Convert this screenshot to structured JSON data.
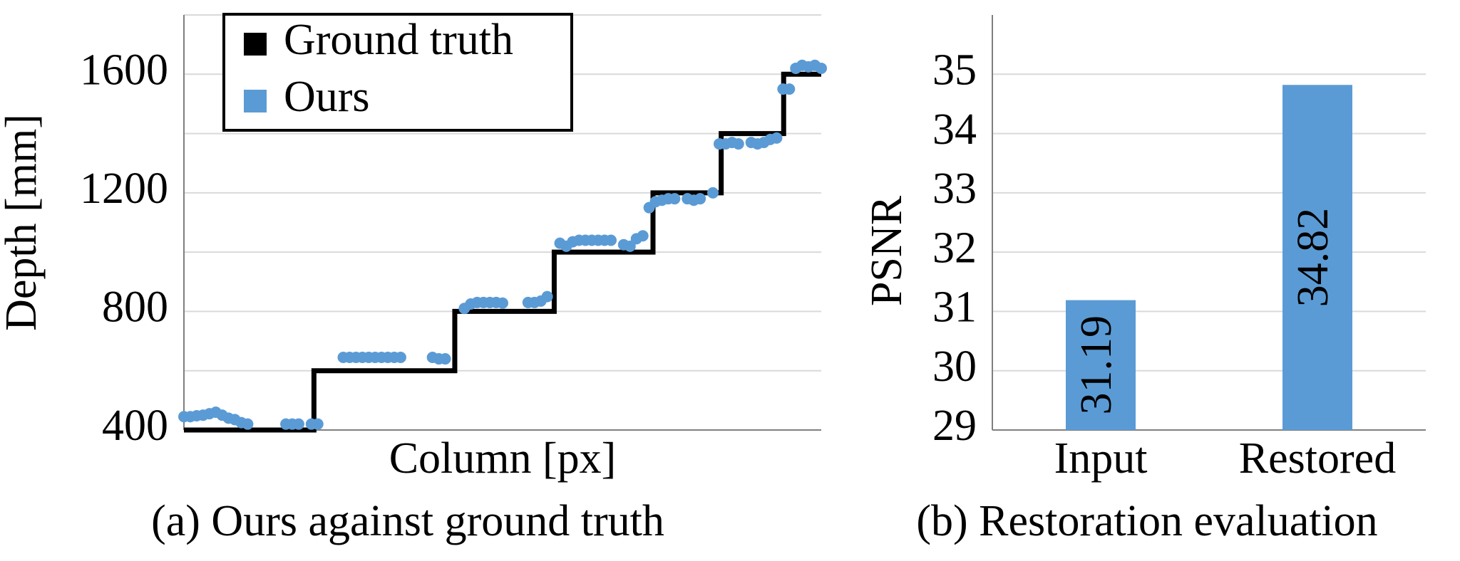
{
  "chart_data": [
    {
      "type": "line",
      "xlabel": "Column [px]",
      "ylabel": "Depth [mm]",
      "caption": "(a) Ours against ground truth",
      "xlim": [
        0,
        100
      ],
      "ylim": [
        400,
        1800
      ],
      "yticks": [
        400,
        800,
        1200,
        1600
      ],
      "minor_grid": [
        600,
        1000,
        1400,
        1800
      ],
      "grid": true,
      "legend": "upper left",
      "series": [
        {
          "name": "Ground truth",
          "color": "#000000",
          "mode": "line",
          "x": [
            0,
            20.4,
            20.4,
            42.5,
            42.5,
            58.1,
            58.1,
            73.6,
            73.6,
            84.3,
            84.3,
            94.1,
            94.1,
            100
          ],
          "values": [
            400,
            400,
            600,
            600,
            800,
            800,
            1000,
            1000,
            1200,
            1200,
            1400,
            1400,
            1600,
            1600
          ]
        },
        {
          "name": "Ours",
          "color": "#5b9bd5",
          "mode": "markers",
          "x": [
            0,
            1,
            2,
            3,
            4,
            5,
            6,
            7,
            8,
            9,
            10,
            16,
            17,
            18,
            20,
            21,
            25,
            26,
            27,
            28,
            29,
            30,
            31,
            32,
            33,
            34,
            39,
            40,
            41,
            44,
            45,
            46,
            47,
            48,
            49,
            50,
            54,
            55,
            56,
            57,
            59,
            60,
            61,
            62,
            63,
            64,
            65,
            66,
            67,
            69,
            70,
            71,
            72,
            73,
            74,
            75,
            76,
            77,
            79,
            80,
            81,
            83,
            84,
            85,
            86,
            87,
            89,
            90,
            91,
            92,
            93,
            94,
            95,
            96,
            97,
            98,
            99,
            100
          ],
          "values": [
            445,
            445,
            448,
            450,
            455,
            460,
            450,
            440,
            435,
            425,
            420,
            420,
            420,
            420,
            420,
            420,
            645,
            645,
            645,
            645,
            645,
            645,
            645,
            645,
            645,
            645,
            645,
            640,
            640,
            810,
            825,
            830,
            830,
            830,
            830,
            828,
            830,
            830,
            835,
            850,
            1030,
            1020,
            1035,
            1040,
            1040,
            1040,
            1040,
            1040,
            1040,
            1025,
            1020,
            1045,
            1055,
            1150,
            1170,
            1175,
            1180,
            1180,
            1180,
            1175,
            1180,
            1200,
            1365,
            1365,
            1370,
            1365,
            1370,
            1365,
            1370,
            1380,
            1385,
            1550,
            1550,
            1620,
            1630,
            1625,
            1630,
            1620
          ]
        }
      ]
    },
    {
      "type": "bar",
      "ylabel": "PSNR",
      "caption": "(b) Restoration evaluation",
      "categories": [
        "Input",
        "Restored"
      ],
      "values": [
        31.19,
        34.82
      ],
      "color": "#5b9bd5",
      "ylim": [
        29,
        36
      ],
      "yticks": [
        29,
        30,
        31,
        32,
        33,
        34,
        35
      ],
      "grid": true
    }
  ]
}
